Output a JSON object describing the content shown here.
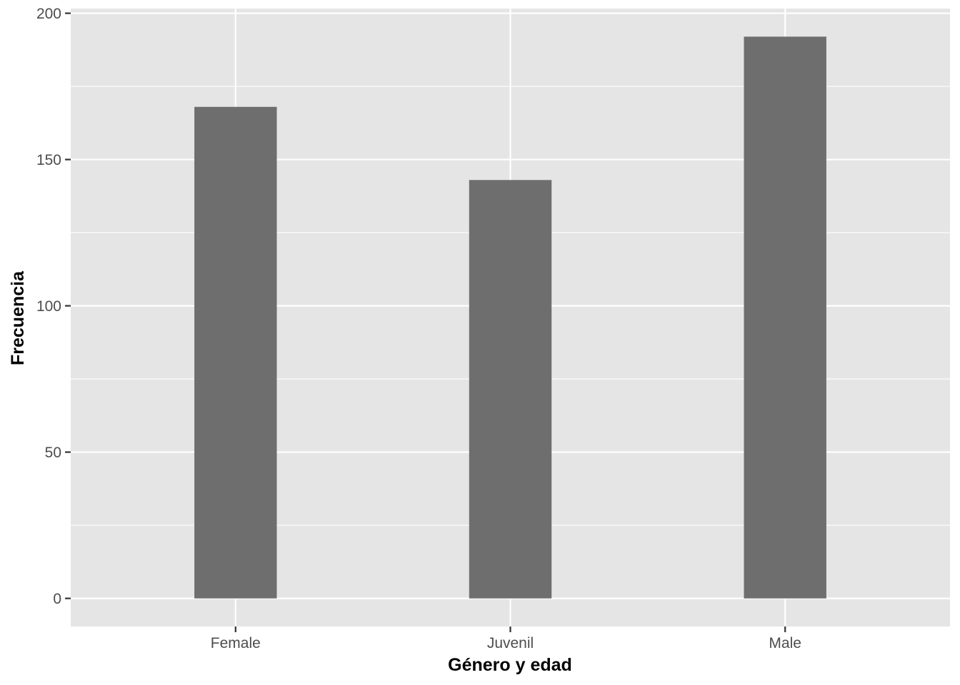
{
  "chart_data": {
    "type": "bar",
    "title": "",
    "xlabel": "Género y edad",
    "ylabel": "Frecuencia",
    "categories": [
      "Female",
      "Juvenil",
      "Male"
    ],
    "values": [
      168,
      143,
      192
    ],
    "ylim": [
      -9.6,
      201.6
    ],
    "yticks": [
      0,
      50,
      100,
      150,
      200
    ],
    "grid": true,
    "legend": "none",
    "colors": {
      "bar": "#6e6e6e",
      "panel": "#e5e5e5",
      "grid": "#ffffff"
    }
  }
}
